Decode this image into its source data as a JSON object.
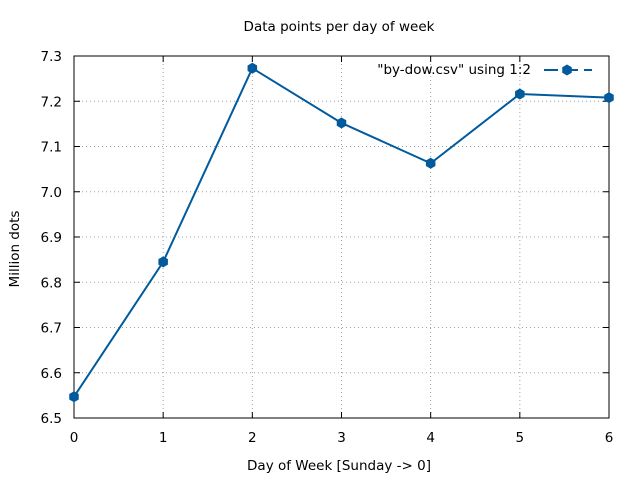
{
  "chart_data": {
    "type": "line",
    "title": "Data points per day of week",
    "xlabel": "Day of Week [Sunday -> 0]",
    "ylabel": "Million dots",
    "xlim": [
      0,
      6
    ],
    "ylim": [
      6.5,
      7.3
    ],
    "x_ticks": [
      "0",
      "1",
      "2",
      "3",
      "4",
      "5",
      "6"
    ],
    "y_ticks": [
      "6.5",
      "6.6",
      "6.7",
      "6.8",
      "6.9",
      "7.0",
      "7.1",
      "7.2",
      "7.3"
    ],
    "grid": true,
    "legend_position": "top-right",
    "series": [
      {
        "name": "\"by-dow.csv\" using 1:2",
        "color": "#005a9c",
        "marker": "filled-hexagon",
        "x": [
          0,
          1,
          2,
          3,
          4,
          5,
          6
        ],
        "y": [
          6.547,
          6.845,
          7.273,
          7.152,
          7.063,
          7.216,
          7.208
        ]
      }
    ]
  }
}
